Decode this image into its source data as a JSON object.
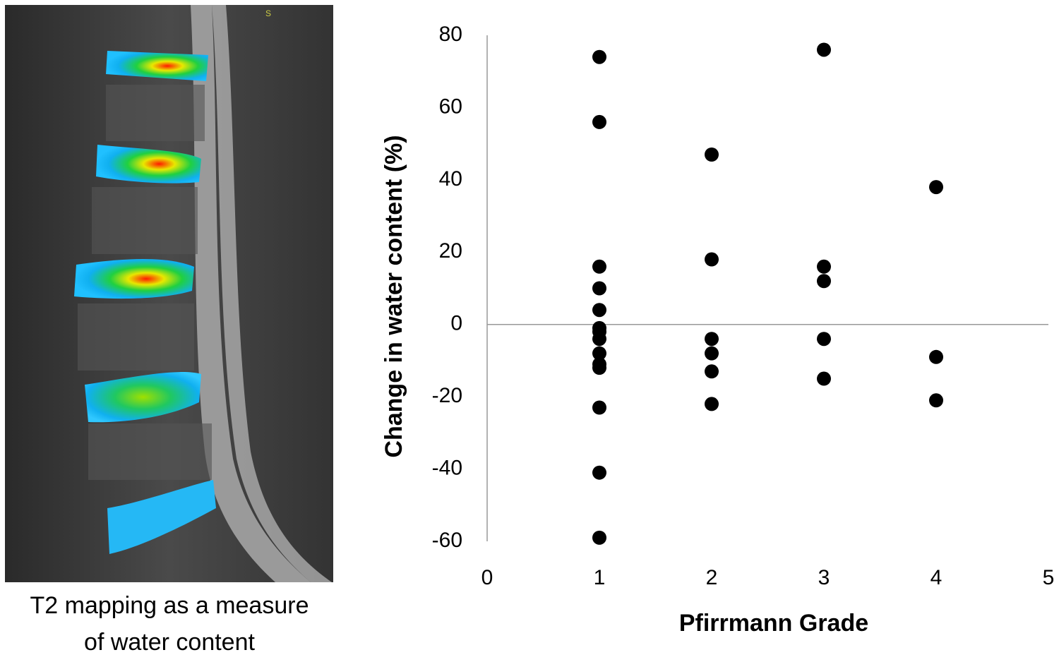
{
  "image_marker": "S",
  "caption": [
    "T2 mapping as a measure",
    "of water content"
  ],
  "chart_data": {
    "type": "scatter",
    "xlabel": "Pfirrmann Grade",
    "ylabel": "Change in water content (%)",
    "xlim": [
      0,
      5
    ],
    "xticks": [
      0,
      1,
      2,
      3,
      4,
      5
    ],
    "ylim": [
      -60,
      80
    ],
    "yticks": [
      -60,
      -40,
      -20,
      0,
      20,
      40,
      60,
      80
    ],
    "color": "#000000",
    "x": [
      1,
      1,
      1,
      1,
      1,
      1,
      1,
      1,
      1,
      1,
      1,
      1,
      1,
      1,
      2,
      2,
      2,
      2,
      2,
      2,
      3,
      3,
      3,
      3,
      3,
      4,
      4,
      4
    ],
    "values": [
      74,
      56,
      16,
      10,
      4,
      -1,
      -2,
      -4,
      -8,
      -11,
      -12,
      -23,
      -41,
      -59,
      47,
      18,
      -4,
      -8,
      -13,
      -22,
      76,
      16,
      12,
      -4,
      -15,
      38,
      -9,
      -21
    ]
  }
}
